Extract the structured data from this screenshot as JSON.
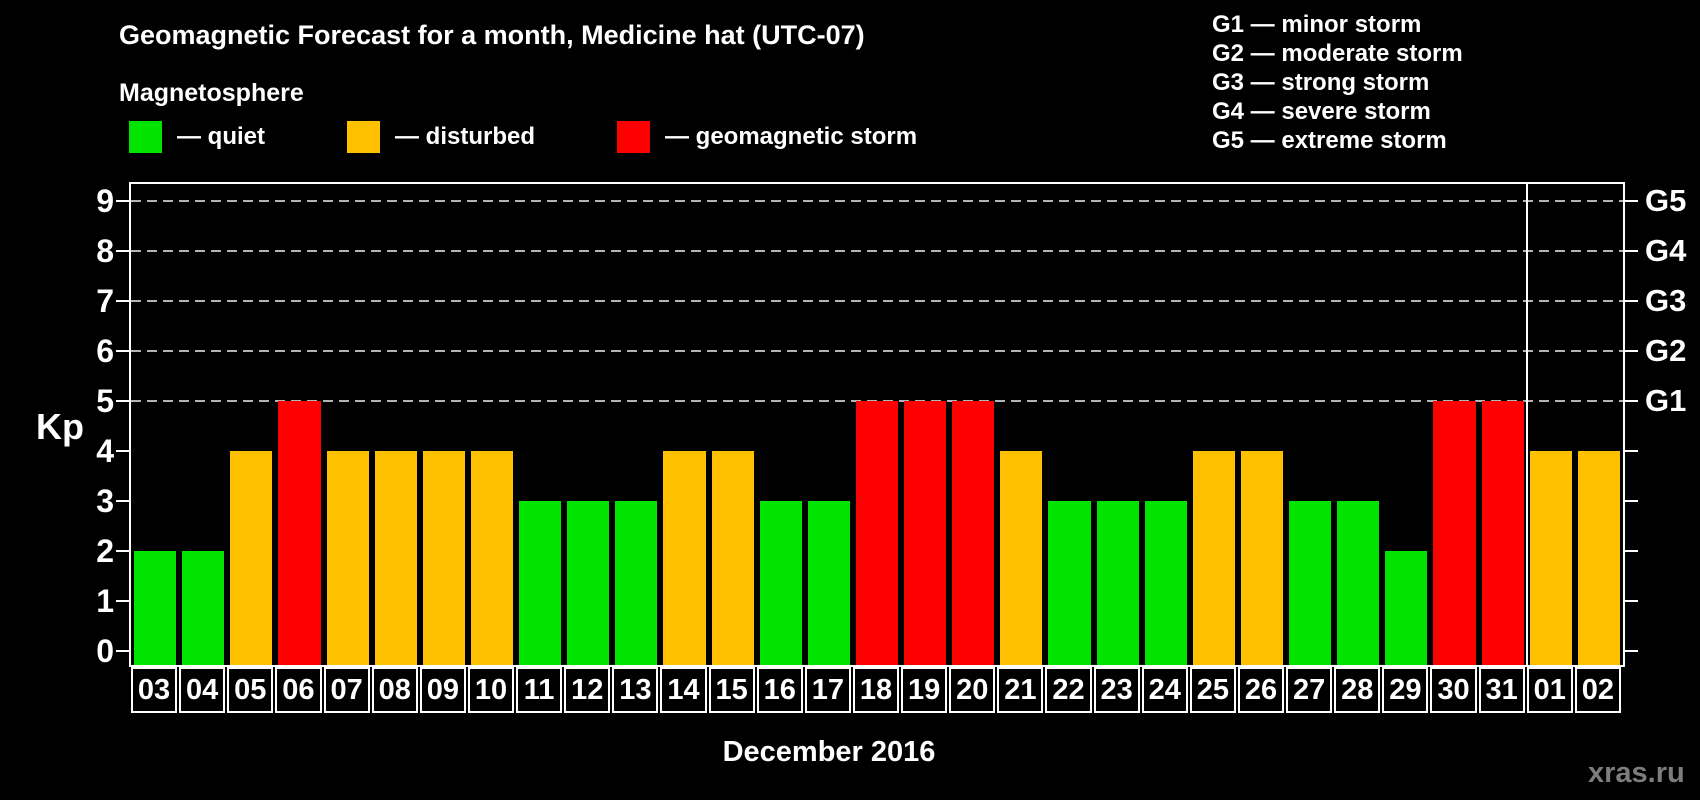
{
  "title": "Geomagnetic Forecast for a month, Medicine hat (UTC-07)",
  "subtitle": "Magnetosphere",
  "legend": {
    "items": [
      {
        "key": "quiet",
        "label": "— quiet",
        "color": "#00e400"
      },
      {
        "key": "disturbed",
        "label": "— disturbed",
        "color": "#ffc000"
      },
      {
        "key": "storm",
        "label": "— geomagnetic storm",
        "color": "#ff0000"
      }
    ]
  },
  "g_scale_legend": {
    "lines": [
      "G1 — minor storm",
      "G2 — moderate storm",
      "G3 — strong storm",
      "G4 — severe storm",
      "G5 — extreme storm"
    ]
  },
  "axes": {
    "y_left_label": "Kp",
    "y_left_ticks": [
      "0",
      "1",
      "2",
      "3",
      "4",
      "5",
      "6",
      "7",
      "8",
      "9"
    ],
    "y_right_ticks": [
      {
        "kp": 5,
        "label": "G1"
      },
      {
        "kp": 6,
        "label": "G2"
      },
      {
        "kp": 7,
        "label": "G3"
      },
      {
        "kp": 8,
        "label": "G4"
      },
      {
        "kp": 9,
        "label": "G5"
      }
    ]
  },
  "x_axis": {
    "month_label": "December 2016"
  },
  "watermark": "xras.ru",
  "chart_data": {
    "type": "bar",
    "title": "Geomagnetic Forecast for a month, Medicine hat (UTC-07)",
    "xlabel": "December 2016",
    "ylabel": "Kp",
    "ylim": [
      0,
      9
    ],
    "grid": "dashed horizontal lines at Kp 5-9 (G1-G5)",
    "gridlines_at_kp": [
      5,
      6,
      7,
      8,
      9
    ],
    "legend_position": "top-left",
    "month_boundary_after_index": 28,
    "categories": [
      "03",
      "04",
      "05",
      "06",
      "07",
      "08",
      "09",
      "10",
      "11",
      "12",
      "13",
      "14",
      "15",
      "16",
      "17",
      "18",
      "19",
      "20",
      "21",
      "22",
      "23",
      "24",
      "25",
      "26",
      "27",
      "28",
      "29",
      "30",
      "31",
      "01",
      "02"
    ],
    "values": [
      2,
      2,
      4,
      5,
      4,
      4,
      4,
      4,
      3,
      3,
      3,
      4,
      4,
      3,
      3,
      5,
      5,
      5,
      4,
      3,
      3,
      3,
      4,
      4,
      3,
      3,
      2,
      5,
      5,
      4,
      4
    ],
    "statuses": [
      "quiet",
      "quiet",
      "disturbed",
      "storm",
      "disturbed",
      "disturbed",
      "disturbed",
      "disturbed",
      "quiet",
      "quiet",
      "quiet",
      "disturbed",
      "disturbed",
      "quiet",
      "quiet",
      "storm",
      "storm",
      "storm",
      "disturbed",
      "quiet",
      "quiet",
      "quiet",
      "disturbed",
      "disturbed",
      "quiet",
      "quiet",
      "quiet",
      "storm",
      "storm",
      "disturbed",
      "disturbed"
    ]
  },
  "colors": {
    "background": "#000000",
    "quiet": "#00e400",
    "disturbed": "#ffc000",
    "storm": "#ff0000",
    "gridline": "#b4b4b4",
    "frame": "#ffffff",
    "watermark": "#7d7d7d"
  }
}
